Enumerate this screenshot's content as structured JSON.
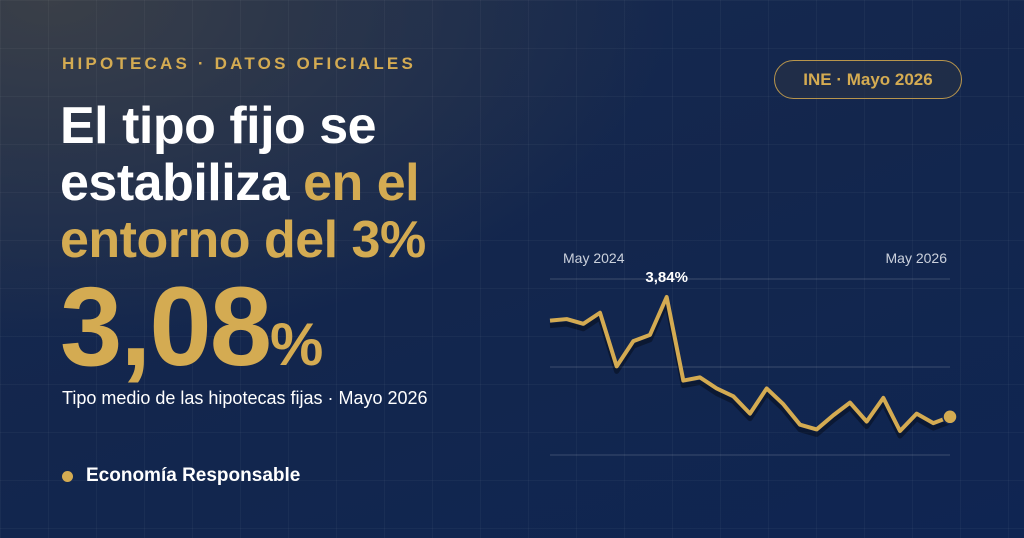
{
  "kicker": "HIPOTECAS · DATOS OFICIALES",
  "badge": "INE · Mayo 2026",
  "headline": [
    "El tipo fijo se estabiliza",
    "en el entorno del 3%"
  ],
  "hero_value": "3,08%",
  "subtitle": "Tipo medio de las hipotecas fijas · Mayo 2026",
  "brand": "Economía Responsable",
  "chart_data": {
    "type": "line",
    "categories": [
      "May 2024",
      null,
      null,
      null,
      null,
      null,
      null,
      null,
      null,
      null,
      null,
      null,
      null,
      null,
      null,
      null,
      null,
      null,
      null,
      null,
      null,
      null,
      null,
      null,
      "May 2026"
    ],
    "values": [
      3.69,
      3.7,
      3.67,
      3.74,
      3.4,
      3.56,
      3.6,
      3.84,
      3.31,
      3.33,
      3.26,
      3.21,
      3.1,
      3.26,
      3.16,
      3.03,
      3.0,
      3.09,
      3.17,
      3.05,
      3.2,
      2.99,
      3.1,
      3.04,
      3.08
    ],
    "value_labels": [
      null,
      null,
      null,
      null,
      null,
      null,
      null,
      "3,84%",
      null,
      null,
      null,
      null,
      null,
      null,
      null,
      null,
      null,
      null,
      null,
      null,
      null,
      null,
      null,
      null,
      null
    ],
    "color": "#d4ab52"
  }
}
